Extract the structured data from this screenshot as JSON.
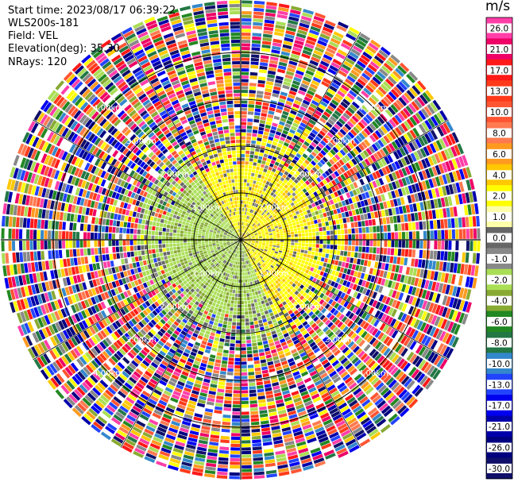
{
  "header": {
    "start_time": "Start time: 2023/08/17 06:39:22",
    "instrument": "WLS200s-181",
    "field": "Field: VEL",
    "elevation": "Elevation(deg): 35.30",
    "nrays": "NRays: 120"
  },
  "colorbar": {
    "unit": "m/s",
    "ticks": [
      "26.0",
      "21.0",
      "17.0",
      "13.0",
      "10.0",
      "8.0",
      "6.0",
      "4.0",
      "2.0",
      "1.0",
      "0.0",
      "-1.0",
      "-2.0",
      "-4.0",
      "-6.0",
      "-8.0",
      "-10.0",
      "-13.0",
      "-17.0",
      "-21.0",
      "-26.0",
      "-30.0"
    ],
    "colors": [
      "#ff3ea8",
      "#ee0066",
      "#ff1818",
      "#ff3a1a",
      "#ff5533",
      "#ff7a50",
      "#ff9a20",
      "#ffc800",
      "#ffff00",
      "#ffffaa",
      "#666666",
      "#888888",
      "#aade55",
      "#88aa33",
      "#228822",
      "#227744",
      "#3388cc",
      "#2244ff",
      "#0000ee",
      "#0000aa",
      "#000080",
      "#10106a"
    ]
  },
  "chart_data": {
    "type": "heatmap",
    "projection": "polar PPI",
    "field": "VEL",
    "nrays": 120,
    "range_ring_labels": [
      "1.00km",
      "2.00km",
      "3.00km",
      "4.00km"
    ],
    "range_label_positions": [
      {
        "ring": "4.00km",
        "text": "4.00km"
      },
      {
        "ring": "3.00km",
        "text": "3.00km"
      },
      {
        "ring": "2.00km",
        "text": "2.00km"
      },
      {
        "ring": "1.00km",
        "text": "1.00km"
      }
    ],
    "clim": [
      -30.0,
      26.0
    ],
    "notes": "inner region (<~2 km): positive velocities (yellow) toward east/north-east, negative (olive green) toward west/south-west; outer region noisy"
  }
}
